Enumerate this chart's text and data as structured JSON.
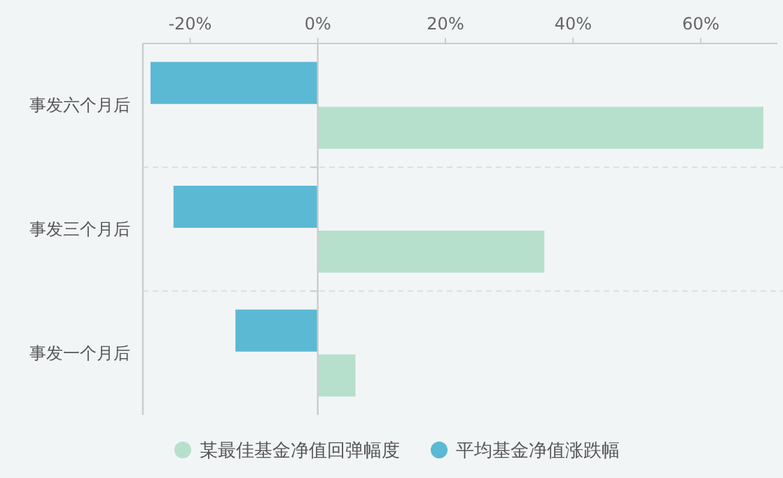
{
  "chart_data": {
    "type": "bar",
    "orientation": "horizontal",
    "categories": [
      "事发六个月后",
      "事发三个月后",
      "事发一个月后"
    ],
    "series": [
      {
        "name": "某最佳基金净值回弹幅度",
        "color": "#b7e0cc",
        "values": [
          69.8,
          35.5,
          5.9
        ]
      },
      {
        "name": "平均基金净值涨跌幅",
        "color": "#5bb9d3",
        "values": [
          -26.2,
          -22.6,
          -12.9
        ]
      }
    ],
    "xlim": [
      -27.4,
      72
    ],
    "xticks": [
      {
        "value": -20,
        "label": "-20%"
      },
      {
        "value": 0,
        "label": "0%"
      },
      {
        "value": 20,
        "label": "20%"
      },
      {
        "value": 40,
        "label": "40%"
      },
      {
        "value": 60,
        "label": "60%"
      }
    ],
    "grid": "y",
    "legend": "bottom"
  }
}
